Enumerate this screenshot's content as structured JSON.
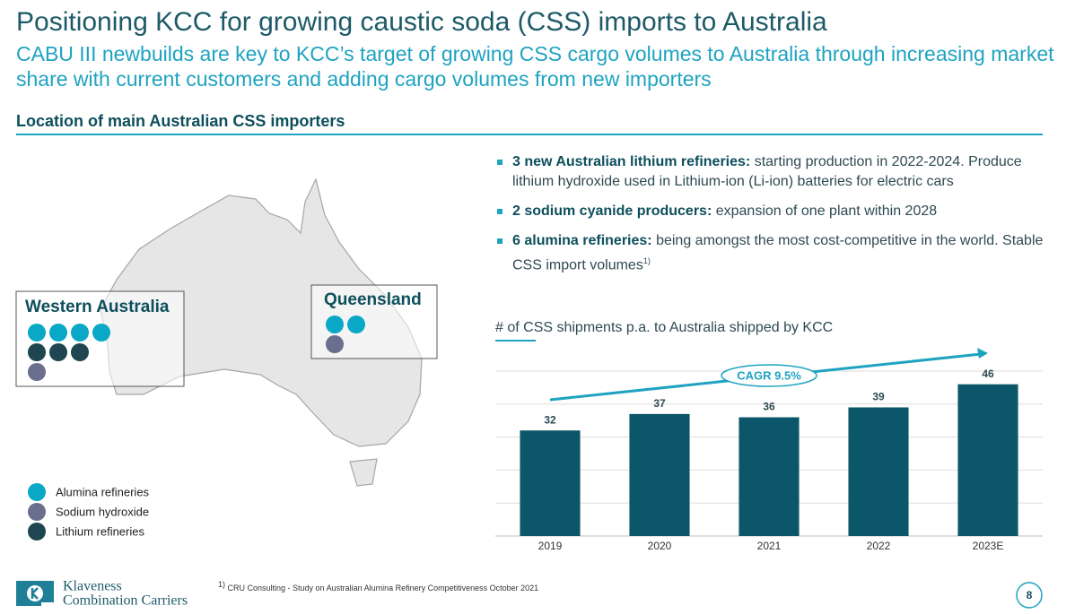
{
  "header": {
    "title": "Positioning KCC for growing caustic soda (CSS) imports to Australia",
    "subtitle": "CABU III newbuilds are key to KCC’s target of growing CSS cargo volumes to Australia through increasing market share with current customers and adding cargo volumes from new importers"
  },
  "section_title": "Location of main Australian CSS importers",
  "map": {
    "regions": [
      "Western Australia",
      "Queensland"
    ],
    "legend": [
      "Alumina refineries",
      "Sodium hydroxide",
      "Lithium refineries"
    ]
  },
  "bullets": [
    {
      "bold": "3 new Australian lithium refineries:",
      "text": " starting production in 2022-2024. Produce lithium hydroxide used in  Lithium-ion (Li-ion) batteries for electric cars"
    },
    {
      "bold": " 2 sodium cyanide producers:",
      "text": " expansion of one plant within 2028"
    },
    {
      "bold": "6 alumina refineries:",
      "text": " being amongst the most cost-competitive in the world. Stable CSS import volumes",
      "note": "1)"
    }
  ],
  "chart_data": {
    "type": "bar",
    "title": "# of CSS shipments p.a. to Australia shipped by KCC",
    "categories": [
      "2019",
      "2020",
      "2021",
      "2022",
      "2023E"
    ],
    "values": [
      32,
      37,
      36,
      39,
      46
    ],
    "color": "#0b5769",
    "ylim": [
      0,
      50
    ],
    "yticks": [
      0,
      10,
      20,
      30,
      40,
      50
    ],
    "grid": true,
    "annotation": "CAGR 9.5%"
  },
  "footnote": {
    "mark": "1)",
    "text": " CRU Consulting  - Study on Australian Alumina Refinery Competitiveness October 2021"
  },
  "logo": [
    "Klaveness",
    "Combination Carriers"
  ],
  "page_number": "8"
}
